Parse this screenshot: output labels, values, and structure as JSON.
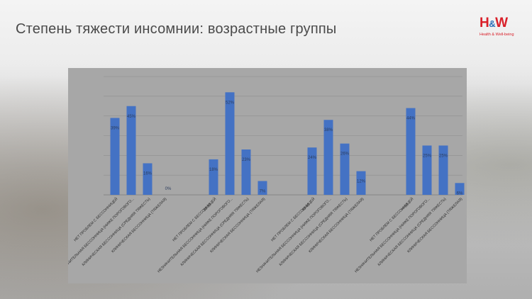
{
  "slide": {
    "title": "Степень тяжести инсомнии: возрастные группы",
    "logo": {
      "text": "H&W",
      "subtext": "Health & Well-being",
      "color": "#d9202a",
      "accent": "#2a6fb8"
    }
  },
  "chart_data": {
    "type": "bar",
    "title": "",
    "xlabel": "",
    "ylabel": "",
    "ylim": [
      0,
      60
    ],
    "grid": true,
    "legend": "none",
    "bar_color": "#4472c4",
    "groups": [
      {
        "label": "",
        "categories": [
          "НЕТ ПРОБЛЕМ С БЕССОННИЦЕЙ",
          "НЕЗНАЧИТЕЛЬНАЯ БЕССОННИЦА (НИЖЕ ПОРОГОВОГО...",
          "КЛИНИЧЕСКАЯ БЕССОННИЦА (СРЕДНЯЯ ТЯЖЕСТЬ)",
          "КЛИНИЧЕСКАЯ БЕССОННИЦА (ТЯЖЕЛАЯ)"
        ],
        "values": [
          39,
          45,
          16,
          0
        ],
        "labels": [
          "39%",
          "45%",
          "16%",
          "0%"
        ]
      },
      {
        "label": "30-39",
        "categories": [
          "НЕТ ПРОБЛЕМ С БЕССОННИЦЕЙ",
          "НЕЗНАЧИТЕЛЬНАЯ БЕССОННИЦА (НИЖЕ ПОРОГОВОГО...",
          "КЛИНИЧЕСКАЯ БЕССОННИЦА (СРЕДНЯЯ ТЯЖЕСТЬ)",
          "КЛИНИЧЕСКАЯ БЕССОННИЦА (ТЯЖЕЛАЯ)"
        ],
        "values": [
          18,
          52,
          23,
          7
        ],
        "labels": [
          "18%",
          "52%",
          "23%",
          "7%"
        ]
      },
      {
        "label": "40-49",
        "categories": [
          "НЕТ ПРОБЛЕМ С БЕССОННИЦЕЙ",
          "НЕЗНАЧИТЕЛЬНАЯ БЕССОННИЦА (НИЖЕ ПОРОГОВОГО...",
          "КЛИНИЧЕСКАЯ БЕССОННИЦА (СРЕДНЯЯ ТЯЖЕСТЬ)",
          "КЛИНИЧЕСКАЯ БЕССОННИЦА (ТЯЖЕЛАЯ)"
        ],
        "values": [
          24,
          38,
          26,
          12
        ],
        "labels": [
          "24%",
          "38%",
          "26%",
          "12%"
        ]
      },
      {
        "label": ">=50",
        "categories": [
          "НЕТ ПРОБЛЕМ С БЕССОННИЦЕЙ",
          "НЕЗНАЧИТЕЛЬНАЯ БЕССОННИЦА (НИЖЕ ПОРОГОВОГО...",
          "КЛИНИЧЕСКАЯ БЕССОННИЦА (СРЕДНЯЯ ТЯЖЕСТЬ)",
          "КЛИНИЧЕСКАЯ БЕССОННИЦА (ТЯЖЕЛАЯ)"
        ],
        "values": [
          44,
          25,
          25,
          6
        ],
        "labels": [
          "44%",
          "25%",
          "25%",
          "6%"
        ]
      }
    ]
  }
}
